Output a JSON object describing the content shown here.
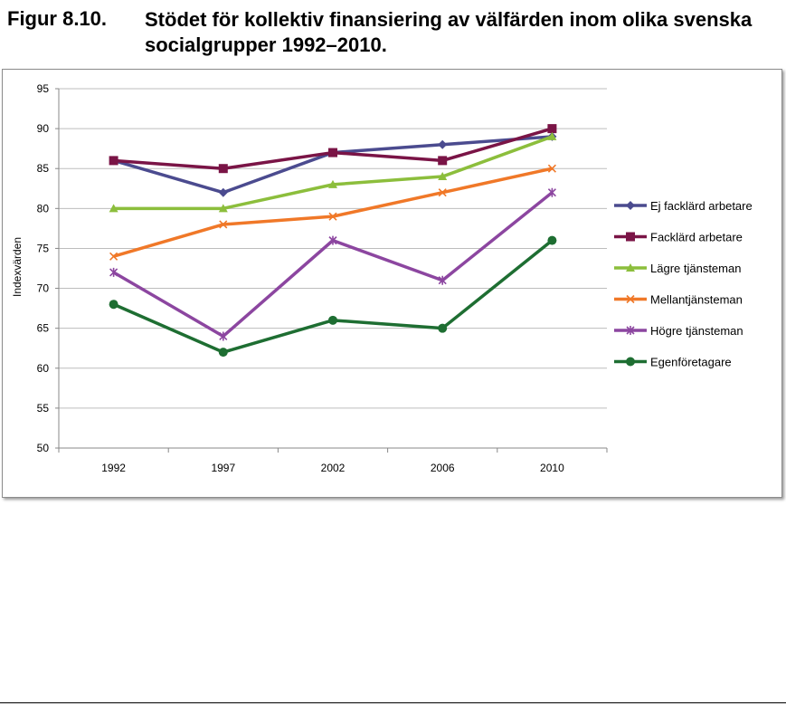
{
  "figure": {
    "label": "Figur 8.10.",
    "title": "Stödet för kollektiv finansiering av välfärden inom olika svenska socialgrupper 1992–2010."
  },
  "chart_data": {
    "type": "line",
    "title": "",
    "xlabel": "",
    "ylabel": "Indexvärden",
    "categories": [
      "1992",
      "1997",
      "2002",
      "2006",
      "2010"
    ],
    "ylim": [
      50,
      95
    ],
    "yticks": [
      50,
      55,
      60,
      65,
      70,
      75,
      80,
      85,
      90,
      95
    ],
    "grid": "horizontal",
    "legend": "right",
    "series": [
      {
        "name": "Ej facklärd arbetare",
        "values": [
          86,
          82,
          87,
          88,
          89
        ],
        "color": "#4b4b8f",
        "marker": "diamond"
      },
      {
        "name": "Facklärd arbetare",
        "values": [
          86,
          85,
          87,
          86,
          90
        ],
        "color": "#7a1446",
        "marker": "square"
      },
      {
        "name": "Lägre tjänsteman",
        "values": [
          80,
          80,
          83,
          84,
          89
        ],
        "color": "#8cbe3c",
        "marker": "triangle"
      },
      {
        "name": "Mellantjänsteman",
        "values": [
          74,
          78,
          79,
          82,
          85
        ],
        "color": "#f07828",
        "marker": "x"
      },
      {
        "name": "Högre tjänsteman",
        "values": [
          72,
          64,
          76,
          71,
          82
        ],
        "color": "#8c46a0",
        "marker": "star"
      },
      {
        "name": "Egenföretagare",
        "values": [
          68,
          62,
          66,
          65,
          76
        ],
        "color": "#1e6e32",
        "marker": "circle"
      }
    ]
  }
}
